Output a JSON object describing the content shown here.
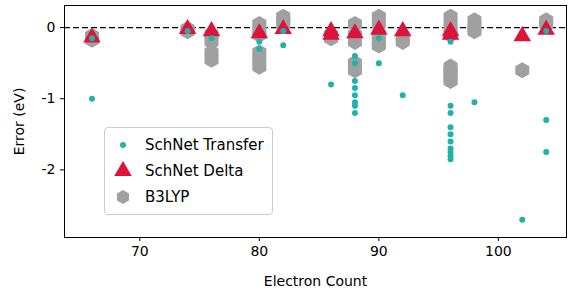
{
  "chart_data": {
    "type": "scatter",
    "x_label": "Electron Count",
    "y_label": "Error (eV)",
    "xlim": [
      63.7,
      105.7
    ],
    "xticks": [
      70,
      80,
      90,
      100
    ],
    "ylim": [
      -2.95,
      0.31
    ],
    "yticks": [
      -2,
      -1,
      0
    ],
    "legend": "lower left",
    "reference_line": {
      "y": 0,
      "line_style": "dashed",
      "color": "#000000"
    },
    "series": [
      {
        "name": "SchNet Transfer",
        "color": "#20b2aa",
        "marker": "circle",
        "x": [
          66,
          66,
          74,
          76,
          80,
          80,
          82,
          82,
          86,
          88,
          88,
          88,
          88,
          88,
          88,
          88,
          88,
          90,
          90,
          92,
          96,
          96,
          96,
          96,
          96,
          96,
          96,
          96,
          96,
          96,
          98,
          102,
          104,
          104,
          104
        ],
        "values": [
          -1.0,
          -0.15,
          -0.05,
          -0.15,
          -0.2,
          -0.3,
          -0.05,
          -0.25,
          -0.8,
          -0.4,
          -0.5,
          -0.75,
          -0.85,
          -0.95,
          -1.05,
          -1.1,
          -1.2,
          -0.15,
          -0.5,
          -0.95,
          -0.2,
          -1.1,
          -1.2,
          -1.4,
          -1.5,
          -1.6,
          -1.7,
          -1.75,
          -1.8,
          -1.85,
          -1.05,
          -2.7,
          -0.05,
          -1.3,
          -1.75
        ]
      },
      {
        "name": "SchNet Delta",
        "color": "#dc143c",
        "marker": "triangle",
        "x": [
          66,
          74,
          76,
          80,
          82,
          86,
          86,
          88,
          90,
          92,
          96,
          96,
          102,
          104
        ],
        "values": [
          -0.14,
          -0.02,
          -0.05,
          -0.08,
          -0.02,
          -0.05,
          -0.1,
          -0.08,
          -0.03,
          -0.05,
          -0.05,
          -0.1,
          -0.12,
          -0.03
        ]
      },
      {
        "name": "B3LYP",
        "color": "#a0a0a0",
        "marker": "hexagon",
        "x": [
          66,
          66,
          74,
          74,
          76,
          76,
          76,
          76,
          80,
          80,
          80,
          80,
          80,
          80,
          82,
          82,
          82,
          86,
          86,
          88,
          88,
          88,
          88,
          88,
          90,
          90,
          90,
          90,
          90,
          92,
          92,
          96,
          96,
          96,
          96,
          96,
          96,
          96,
          96,
          96,
          98,
          98,
          98,
          102,
          104,
          104
        ],
        "values": [
          -0.12,
          -0.17,
          -0.02,
          -0.05,
          -0.1,
          -0.2,
          -0.35,
          -0.45,
          0.05,
          -0.05,
          -0.1,
          -0.35,
          -0.45,
          -0.55,
          0.15,
          0.1,
          0.05,
          -0.1,
          -0.15,
          0.05,
          -0.1,
          -0.2,
          -0.5,
          -0.6,
          0.15,
          0.05,
          -0.1,
          -0.2,
          -0.25,
          -0.15,
          -0.2,
          0.15,
          0.05,
          -0.05,
          -0.1,
          -0.55,
          -0.6,
          -0.65,
          -0.7,
          -0.75,
          0.1,
          0.0,
          -0.05,
          -0.6,
          0.1,
          0.05
        ]
      }
    ]
  }
}
